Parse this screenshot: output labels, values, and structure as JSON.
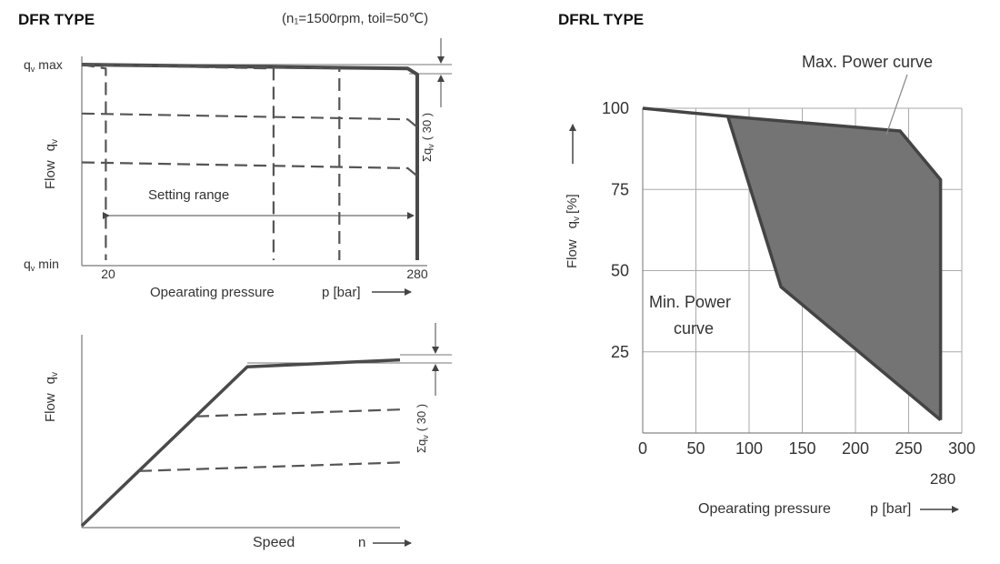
{
  "left_title": "DFR TYPE",
  "conditions": "(n₁=1500rpm, toil=50℃)",
  "right_title": "DFRL TYPE",
  "chart_data": [
    {
      "type": "line",
      "id": "dfr-pressure",
      "ylabel_word": "Flow",
      "ylabel_symbol": "q",
      "ylabel_sub": "v",
      "ylabel_top": "q",
      "ylabel_top_sub": "v",
      "ylabel_top_suffix": "max",
      "ylabel_bottom": "q",
      "ylabel_bottom_sub": "v",
      "ylabel_bottom_suffix": "min",
      "x_ticks": [
        "20",
        "280"
      ],
      "xlabel": "Opearating pressure",
      "xunit": "p [bar]",
      "setting_range_label": "Setting range",
      "tolerance_symbol": "Σq",
      "tolerance_sub": "v",
      "tolerance_value": "( 30 )",
      "series": [
        {
          "points": [
            [
              0,
              100
            ],
            [
              272,
              98
            ],
            [
              280,
              95
            ],
            [
              280,
              0
            ]
          ]
        },
        {
          "points": [
            [
              0,
              100
            ],
            [
              20,
              98
            ],
            [
              20,
              0
            ]
          ]
        },
        {
          "points": [
            [
              0,
              100
            ],
            [
              160,
              98
            ],
            [
              160,
              0
            ]
          ]
        },
        {
          "points": [
            [
              0,
              100
            ],
            [
              215,
              98
            ],
            [
              215,
              0
            ]
          ]
        },
        {
          "points": [
            [
              0,
              75
            ],
            [
              272,
              72
            ],
            [
              280,
              68
            ]
          ]
        },
        {
          "points": [
            [
              0,
              50
            ],
            [
              272,
              47
            ],
            [
              280,
              43
            ]
          ]
        }
      ]
    },
    {
      "type": "line",
      "id": "dfr-speed",
      "ylabel_word": "Flow",
      "ylabel_symbol": "q",
      "ylabel_sub": "v",
      "xlabel": "Speed",
      "xunit": "n",
      "tolerance_symbol": "Σq",
      "tolerance_sub": "v",
      "tolerance_value": "( 30 )",
      "series": [
        {
          "points": [
            [
              0,
              0
            ],
            [
              0.52,
              93
            ],
            [
              1.0,
              97
            ]
          ]
        },
        {
          "points": [
            [
              0.36,
              64
            ],
            [
              1.0,
              68
            ]
          ]
        },
        {
          "points": [
            [
              0.18,
              32
            ],
            [
              1.0,
              37
            ]
          ]
        }
      ]
    },
    {
      "type": "area",
      "id": "dfrl",
      "xlim": [
        0,
        300
      ],
      "ylim": [
        0,
        100
      ],
      "x_ticks": [
        0,
        50,
        100,
        150,
        200,
        250,
        300
      ],
      "y_ticks": [
        100,
        75,
        50,
        25
      ],
      "extra_x_label": "280",
      "grid": true,
      "ylabel_word": "Flow",
      "ylabel_symbol": "q",
      "ylabel_sub": "v",
      "ylabel_unit": "[%]",
      "xlabel": "Opearating pressure",
      "xunit": "p [bar]",
      "max_label": "Max. Power curve",
      "min_label_line1": "Min. Power",
      "min_label_line2": "curve",
      "fill_color": "#747474",
      "max_curve": [
        [
          0,
          100
        ],
        [
          80,
          97.5
        ],
        [
          242,
          93
        ],
        [
          280,
          78
        ],
        [
          280,
          4
        ]
      ],
      "min_curve": [
        [
          80,
          97.5
        ],
        [
          130,
          45
        ],
        [
          280,
          4
        ]
      ]
    }
  ]
}
